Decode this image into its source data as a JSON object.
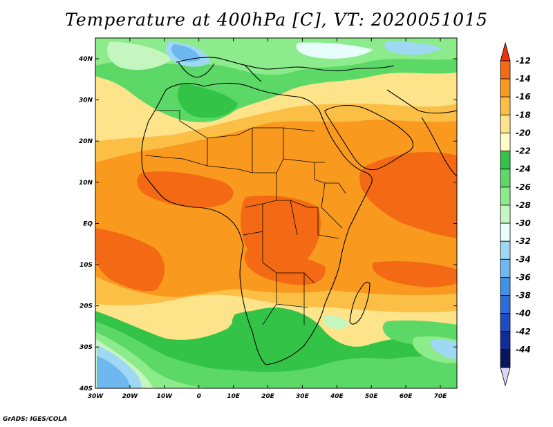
{
  "title": "Temperature at 400hPa [C], VT: 2020051015",
  "credit": "GrADS: IGES/COLA",
  "map": {
    "lat_labels": [
      "40N",
      "30N",
      "20N",
      "10N",
      "EQ",
      "10S",
      "20S",
      "30S",
      "40S"
    ],
    "lon_labels": [
      "30W",
      "20W",
      "10W",
      "0",
      "10E",
      "20E",
      "30E",
      "40E",
      "50E",
      "60E",
      "70E"
    ]
  },
  "colorbar": {
    "levels": [
      "-12",
      "-14",
      "-16",
      "-18",
      "-20",
      "-22",
      "-24",
      "-26",
      "-28",
      "-30",
      "-32",
      "-34",
      "-36",
      "-38",
      "-40",
      "-42",
      "-44"
    ],
    "colors": [
      "#e8320a",
      "#f46a14",
      "#f99a1e",
      "#fbbf46",
      "#fde38a",
      "#fefcc8",
      "#33c447",
      "#5cd867",
      "#8ceb8a",
      "#c6f6c0",
      "#e6fdfc",
      "#9fd8f3",
      "#6cb8ef",
      "#3f92e8",
      "#2f6bdb",
      "#1e4cc2",
      "#102c9c",
      "#08165e",
      "#d8d8f6"
    ]
  },
  "colors": {
    "coast": "#000000",
    "frame": "#000000"
  }
}
